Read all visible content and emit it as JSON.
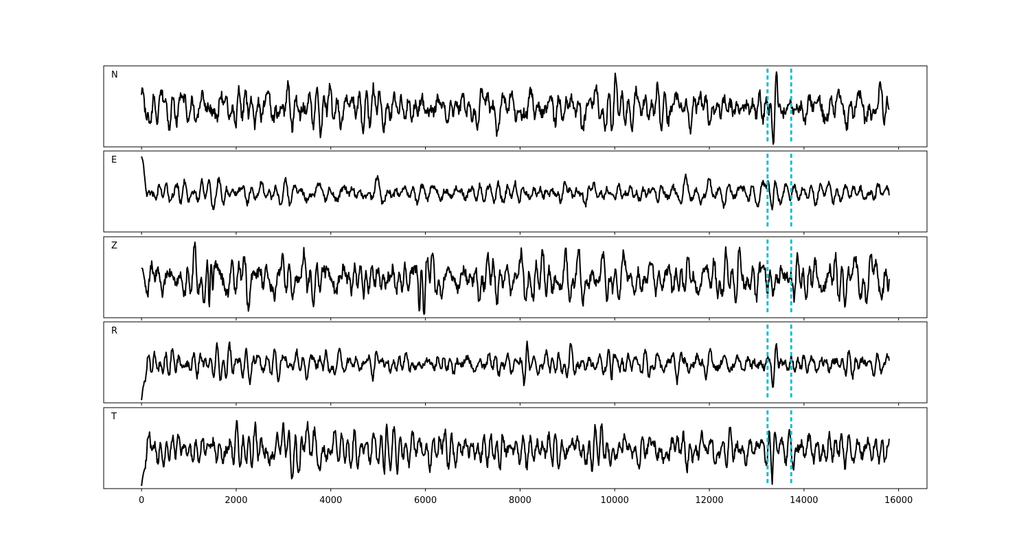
{
  "chart_data": {
    "type": "line",
    "title": "",
    "xlabel": "",
    "ylabel": "",
    "xlim": [
      -800,
      16600
    ],
    "x_ticks": [
      0,
      2000,
      4000,
      6000,
      8000,
      10000,
      12000,
      14000,
      16000
    ],
    "x_tick_labels": [
      "0",
      "2000",
      "4000",
      "6000",
      "8000",
      "10000",
      "12000",
      "14000",
      "16000"
    ],
    "n_samples": 15800,
    "y_ticks_shown": false,
    "pick_lines": {
      "color": "#17becf",
      "style": "dashed",
      "x": [
        13230,
        13730
      ]
    },
    "panels": [
      {
        "label": "N",
        "seed": 11,
        "start_jump": 0,
        "events": [
          {
            "x": 13380,
            "amp": 0.95,
            "width": 60
          },
          {
            "x": 7600,
            "amp": 0.35,
            "width": 80
          }
        ]
      },
      {
        "label": "E",
        "seed": 23,
        "start_jump": 1.0,
        "events": [
          {
            "x": 13350,
            "amp": 0.5,
            "width": 70
          },
          {
            "x": 7700,
            "amp": 0.45,
            "width": 80
          }
        ]
      },
      {
        "label": "Z",
        "seed": 37,
        "start_jump": 0.15,
        "events": [
          {
            "x": 5900,
            "amp": 0.7,
            "width": 50
          },
          {
            "x": 1450,
            "amp": 0.6,
            "width": 40
          },
          {
            "x": 12600,
            "amp": 0.45,
            "width": 60
          }
        ]
      },
      {
        "label": "R",
        "seed": 41,
        "start_jump": -0.9,
        "events": [
          {
            "x": 13380,
            "amp": 0.85,
            "width": 60
          },
          {
            "x": 8120,
            "amp": 0.7,
            "width": 60
          },
          {
            "x": 9950,
            "amp": 0.55,
            "width": 50
          }
        ]
      },
      {
        "label": "T",
        "seed": 53,
        "start_jump": -0.6,
        "events": [
          {
            "x": 13350,
            "amp": 0.85,
            "width": 60
          },
          {
            "x": 5150,
            "amp": 0.5,
            "width": 50
          },
          {
            "x": 7600,
            "amp": 0.45,
            "width": 60
          }
        ]
      }
    ]
  }
}
